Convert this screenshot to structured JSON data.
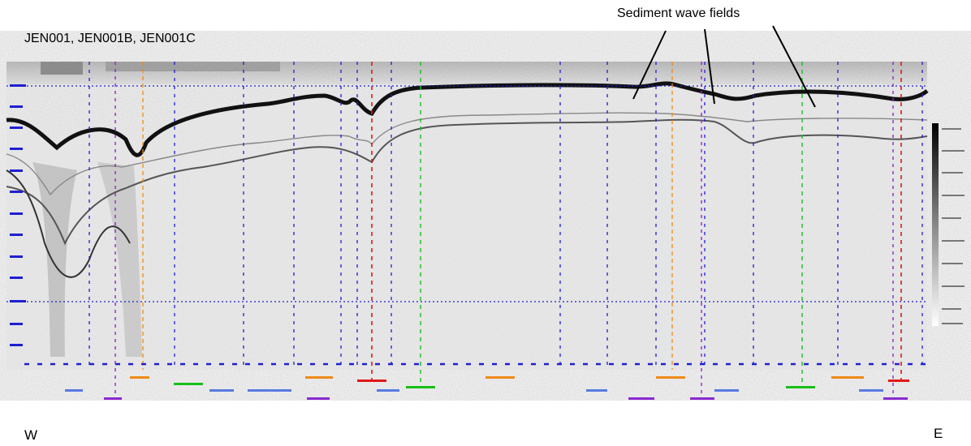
{
  "figure": {
    "title": "JEN001, JEN001B, JEN001C",
    "annotation": "Sediment wave fields",
    "west_label": "W",
    "east_label": "E"
  },
  "colors": {
    "grid": "#1f1fd0",
    "marker_red": "#e01818",
    "marker_green": "#18c018",
    "marker_orange": "#f08a18",
    "marker_purple": "#8a2ad0",
    "reflector": "#111111",
    "background": "#ffffff"
  }
}
